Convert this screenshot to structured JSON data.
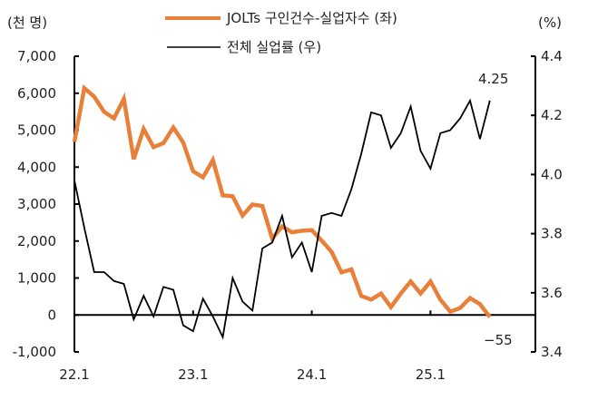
{
  "chart_data": {
    "type": "line",
    "left_unit": "(천 명)",
    "right_unit": "(%)",
    "x_ticks": [
      "22.1",
      "23.1",
      "24.1",
      "25.1"
    ],
    "x_start": "22.1",
    "x_end": "25.7",
    "left_axis": {
      "min": -1000,
      "max": 7000,
      "ticks": [
        7000,
        6000,
        5000,
        4000,
        3000,
        2000,
        1000,
        0,
        -1000
      ],
      "tick_labels": [
        "7,000",
        "6,000",
        "5,000",
        "4,000",
        "3,000",
        "2,000",
        "1,000",
        "0",
        "-1,000"
      ]
    },
    "right_axis": {
      "min": 3.4,
      "max": 4.4,
      "ticks": [
        4.4,
        4.2,
        4.0,
        3.8,
        3.6,
        3.4
      ],
      "tick_labels": [
        "4.4",
        "4.2",
        "4.0",
        "3.8",
        "3.6",
        "3.4"
      ]
    },
    "legend_position": "top",
    "series": [
      {
        "name": "JOLTs 구인건수-실업자수 (좌)",
        "axis": "left",
        "color": "#E8803A",
        "values": [
          4680,
          6135,
          5907,
          5498,
          5319,
          5850,
          4216,
          5033,
          4542,
          4649,
          5074,
          4665,
          3889,
          3725,
          4191,
          3235,
          3211,
          2688,
          2990,
          2949,
          2067,
          2394,
          2238,
          2279,
          2296,
          2010,
          1708,
          1152,
          1234,
          515,
          417,
          580,
          212,
          580,
          907,
          580,
          907,
          417,
          90,
          188,
          458,
          294,
          -55
        ]
      },
      {
        "name": "전체 실업률 (우)",
        "axis": "right",
        "color": "#000000",
        "values": [
          3.98,
          3.82,
          3.67,
          3.67,
          3.64,
          3.63,
          3.51,
          3.59,
          3.52,
          3.62,
          3.61,
          3.49,
          3.47,
          3.58,
          3.52,
          3.45,
          3.65,
          3.57,
          3.54,
          3.75,
          3.77,
          3.86,
          3.72,
          3.77,
          3.67,
          3.86,
          3.87,
          3.86,
          3.95,
          4.07,
          4.21,
          4.2,
          4.09,
          4.14,
          4.23,
          4.08,
          4.02,
          4.14,
          4.15,
          4.19,
          4.25,
          4.12,
          4.25
        ]
      }
    ],
    "annotations": {
      "last_rate": "4.25",
      "last_gap": "−55"
    }
  }
}
